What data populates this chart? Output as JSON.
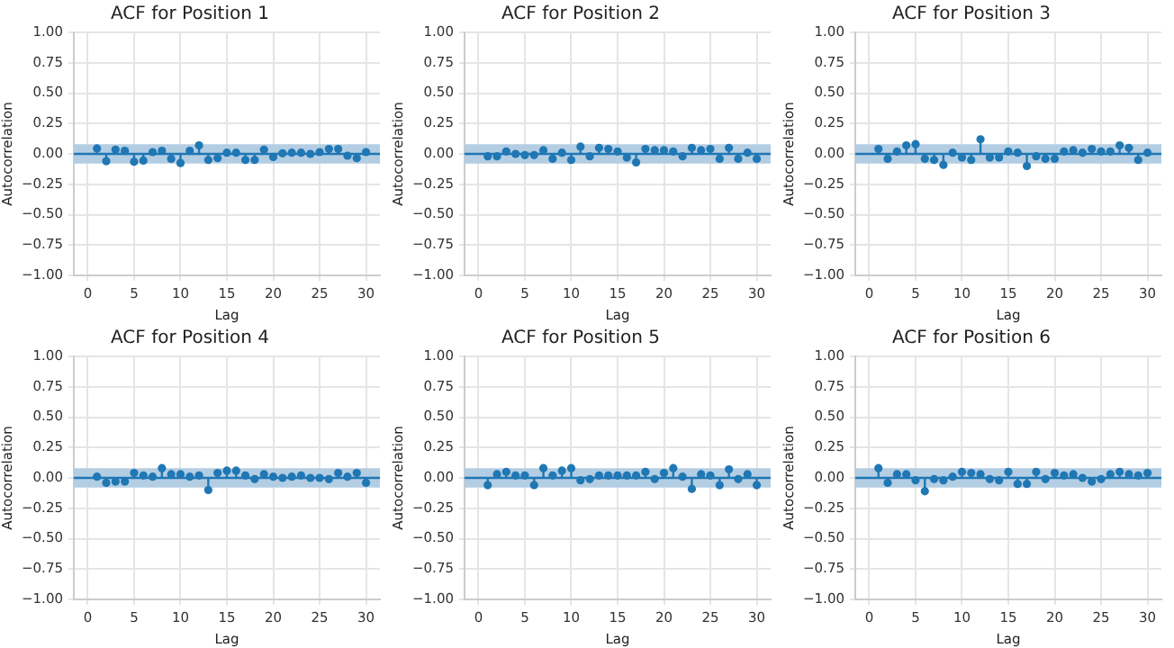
{
  "chart_data": [
    {
      "type": "lollipop",
      "title": "ACF for Position 1",
      "xlabel": "Lag",
      "ylabel": "Autocorrelation",
      "color": "#1f77b4",
      "marker": "circle",
      "grid": true,
      "xlim": [
        -1.5,
        31.5
      ],
      "xticks": [
        0,
        5,
        10,
        15,
        20,
        25,
        30
      ],
      "ylim": [
        -1,
        1
      ],
      "yticks": [
        {
          "value": -1,
          "label": "−1.00"
        },
        {
          "value": -0.75,
          "label": "−0.75"
        },
        {
          "value": -0.5,
          "label": "−0.50"
        },
        {
          "value": -0.25,
          "label": "−0.25"
        },
        {
          "value": 0,
          "label": "0.00"
        },
        {
          "value": 0.25,
          "label": "0.25"
        },
        {
          "value": 0.5,
          "label": "0.50"
        },
        {
          "value": 0.75,
          "label": "0.75"
        },
        {
          "value": 1,
          "label": "1.00"
        }
      ],
      "bands": [
        {
          "axis": "y",
          "from": -0.08,
          "to": 0.08,
          "color": "#b3cde3"
        }
      ],
      "ref_lines": [
        {
          "axis": "y",
          "value": 0,
          "color": "#1f77b4"
        }
      ],
      "x": [
        1,
        2,
        3,
        4,
        5,
        6,
        7,
        8,
        9,
        10,
        11,
        12,
        13,
        14,
        15,
        16,
        17,
        18,
        19,
        20,
        21,
        22,
        23,
        24,
        25,
        26,
        27,
        28,
        29,
        30
      ],
      "values": [
        0.045,
        -0.06,
        0.035,
        0.025,
        -0.065,
        -0.055,
        0.015,
        0.025,
        -0.04,
        -0.075,
        0.025,
        0.07,
        -0.05,
        -0.035,
        0.01,
        0.01,
        -0.05,
        -0.05,
        0.035,
        -0.025,
        0.005,
        0.01,
        0.01,
        0,
        0.015,
        0.04,
        0.04,
        -0.015,
        -0.035,
        0.015
      ]
    },
    {
      "type": "lollipop",
      "title": "ACF for Position 2",
      "xlabel": "Lag",
      "ylabel": "Autocorrelation",
      "color": "#1f77b4",
      "marker": "circle",
      "grid": true,
      "xlim": [
        -1.5,
        31.5
      ],
      "xticks": [
        0,
        5,
        10,
        15,
        20,
        25,
        30
      ],
      "ylim": [
        -1,
        1
      ],
      "yticks": [
        {
          "value": -1,
          "label": "−1.00"
        },
        {
          "value": -0.75,
          "label": "−0.75"
        },
        {
          "value": -0.5,
          "label": "−0.50"
        },
        {
          "value": -0.25,
          "label": "−0.25"
        },
        {
          "value": 0,
          "label": "0.00"
        },
        {
          "value": 0.25,
          "label": "0.25"
        },
        {
          "value": 0.5,
          "label": "0.50"
        },
        {
          "value": 0.75,
          "label": "0.75"
        },
        {
          "value": 1,
          "label": "1.00"
        }
      ],
      "bands": [
        {
          "axis": "y",
          "from": -0.08,
          "to": 0.08,
          "color": "#b3cde3"
        }
      ],
      "ref_lines": [
        {
          "axis": "y",
          "value": 0,
          "color": "#1f77b4"
        }
      ],
      "x": [
        1,
        2,
        3,
        4,
        5,
        6,
        7,
        8,
        9,
        10,
        11,
        12,
        13,
        14,
        15,
        16,
        17,
        18,
        19,
        20,
        21,
        22,
        23,
        24,
        25,
        26,
        27,
        28,
        29,
        30
      ],
      "values": [
        -0.02,
        -0.02,
        0.02,
        0,
        -0.01,
        -0.01,
        0.03,
        -0.04,
        0.01,
        -0.05,
        0.06,
        -0.02,
        0.05,
        0.04,
        0.02,
        -0.03,
        -0.07,
        0.04,
        0.03,
        0.03,
        0.02,
        -0.02,
        0.05,
        0.03,
        0.04,
        -0.04,
        0.05,
        -0.04,
        0.01,
        -0.04
      ]
    },
    {
      "type": "lollipop",
      "title": "ACF for Position 3",
      "xlabel": "Lag",
      "ylabel": "Autocorrelation",
      "color": "#1f77b4",
      "marker": "circle",
      "grid": true,
      "xlim": [
        -1.5,
        31.5
      ],
      "xticks": [
        0,
        5,
        10,
        15,
        20,
        25,
        30
      ],
      "ylim": [
        -1,
        1
      ],
      "yticks": [
        {
          "value": -1,
          "label": "−1.00"
        },
        {
          "value": -0.75,
          "label": "−0.75"
        },
        {
          "value": -0.5,
          "label": "−0.50"
        },
        {
          "value": -0.25,
          "label": "−0.25"
        },
        {
          "value": 0,
          "label": "0.00"
        },
        {
          "value": 0.25,
          "label": "0.25"
        },
        {
          "value": 0.5,
          "label": "0.50"
        },
        {
          "value": 0.75,
          "label": "0.75"
        },
        {
          "value": 1,
          "label": "1.00"
        }
      ],
      "bands": [
        {
          "axis": "y",
          "from": -0.08,
          "to": 0.08,
          "color": "#b3cde3"
        }
      ],
      "ref_lines": [
        {
          "axis": "y",
          "value": 0,
          "color": "#1f77b4"
        }
      ],
      "x": [
        1,
        2,
        3,
        4,
        5,
        6,
        7,
        8,
        9,
        10,
        11,
        12,
        13,
        14,
        15,
        16,
        17,
        18,
        19,
        20,
        21,
        22,
        23,
        24,
        25,
        26,
        27,
        28,
        29,
        30
      ],
      "values": [
        0.04,
        -0.04,
        0.02,
        0.07,
        0.08,
        -0.04,
        -0.05,
        -0.09,
        0.01,
        -0.03,
        -0.05,
        0.12,
        -0.03,
        -0.03,
        0.02,
        0.01,
        -0.1,
        -0.02,
        -0.04,
        -0.04,
        0.02,
        0.03,
        0.01,
        0.04,
        0.02,
        0.02,
        0.07,
        0.05,
        -0.05,
        0.01
      ]
    },
    {
      "type": "lollipop",
      "title": "ACF for Position 4",
      "xlabel": "Lag",
      "ylabel": "Autocorrelation",
      "color": "#1f77b4",
      "marker": "circle",
      "grid": true,
      "xlim": [
        -1.5,
        31.5
      ],
      "xticks": [
        0,
        5,
        10,
        15,
        20,
        25,
        30
      ],
      "ylim": [
        -1,
        1
      ],
      "yticks": [
        {
          "value": -1,
          "label": "−1.00"
        },
        {
          "value": -0.75,
          "label": "−0.75"
        },
        {
          "value": -0.5,
          "label": "−0.50"
        },
        {
          "value": -0.25,
          "label": "−0.25"
        },
        {
          "value": 0,
          "label": "0.00"
        },
        {
          "value": 0.25,
          "label": "0.25"
        },
        {
          "value": 0.5,
          "label": "0.50"
        },
        {
          "value": 0.75,
          "label": "0.75"
        },
        {
          "value": 1,
          "label": "1.00"
        }
      ],
      "bands": [
        {
          "axis": "y",
          "from": -0.08,
          "to": 0.08,
          "color": "#b3cde3"
        }
      ],
      "ref_lines": [
        {
          "axis": "y",
          "value": 0,
          "color": "#1f77b4"
        }
      ],
      "x": [
        1,
        2,
        3,
        4,
        5,
        6,
        7,
        8,
        9,
        10,
        11,
        12,
        13,
        14,
        15,
        16,
        17,
        18,
        19,
        20,
        21,
        22,
        23,
        24,
        25,
        26,
        27,
        28,
        29,
        30
      ],
      "values": [
        0.01,
        -0.04,
        -0.03,
        -0.03,
        0.04,
        0.02,
        0.01,
        0.08,
        0.03,
        0.03,
        0.01,
        0.02,
        -0.1,
        0.04,
        0.06,
        0.06,
        0.02,
        -0.01,
        0.03,
        0.01,
        0,
        0.01,
        0.02,
        0,
        0,
        -0.01,
        0.04,
        0.01,
        0.04,
        -0.04
      ]
    },
    {
      "type": "lollipop",
      "title": "ACF for Position 5",
      "xlabel": "Lag",
      "ylabel": "Autocorrelation",
      "color": "#1f77b4",
      "marker": "circle",
      "grid": true,
      "xlim": [
        -1.5,
        31.5
      ],
      "xticks": [
        0,
        5,
        10,
        15,
        20,
        25,
        30
      ],
      "ylim": [
        -1,
        1
      ],
      "yticks": [
        {
          "value": -1,
          "label": "−1.00"
        },
        {
          "value": -0.75,
          "label": "−0.75"
        },
        {
          "value": -0.5,
          "label": "−0.50"
        },
        {
          "value": -0.25,
          "label": "−0.25"
        },
        {
          "value": 0,
          "label": "0.00"
        },
        {
          "value": 0.25,
          "label": "0.25"
        },
        {
          "value": 0.5,
          "label": "0.50"
        },
        {
          "value": 0.75,
          "label": "0.75"
        },
        {
          "value": 1,
          "label": "1.00"
        }
      ],
      "bands": [
        {
          "axis": "y",
          "from": -0.08,
          "to": 0.08,
          "color": "#b3cde3"
        }
      ],
      "ref_lines": [
        {
          "axis": "y",
          "value": 0,
          "color": "#1f77b4"
        }
      ],
      "x": [
        1,
        2,
        3,
        4,
        5,
        6,
        7,
        8,
        9,
        10,
        11,
        12,
        13,
        14,
        15,
        16,
        17,
        18,
        19,
        20,
        21,
        22,
        23,
        24,
        25,
        26,
        27,
        28,
        29,
        30
      ],
      "values": [
        -0.06,
        0.03,
        0.05,
        0.02,
        0.02,
        -0.06,
        0.08,
        0.02,
        0.06,
        0.08,
        -0.02,
        -0.01,
        0.02,
        0.02,
        0.02,
        0.02,
        0.02,
        0.05,
        -0.01,
        0.04,
        0.08,
        0.01,
        -0.09,
        0.03,
        0.02,
        -0.06,
        0.07,
        -0.01,
        0.03,
        -0.06
      ]
    },
    {
      "type": "lollipop",
      "title": "ACF for Position 6",
      "xlabel": "Lag",
      "ylabel": "Autocorrelation",
      "color": "#1f77b4",
      "marker": "circle",
      "grid": true,
      "xlim": [
        -1.5,
        31.5
      ],
      "xticks": [
        0,
        5,
        10,
        15,
        20,
        25,
        30
      ],
      "ylim": [
        -1,
        1
      ],
      "yticks": [
        {
          "value": -1,
          "label": "−1.00"
        },
        {
          "value": -0.75,
          "label": "−0.75"
        },
        {
          "value": -0.5,
          "label": "−0.50"
        },
        {
          "value": -0.25,
          "label": "−0.25"
        },
        {
          "value": 0,
          "label": "0.00"
        },
        {
          "value": 0.25,
          "label": "0.25"
        },
        {
          "value": 0.5,
          "label": "0.50"
        },
        {
          "value": 0.75,
          "label": "0.75"
        },
        {
          "value": 1,
          "label": "1.00"
        }
      ],
      "bands": [
        {
          "axis": "y",
          "from": -0.08,
          "to": 0.08,
          "color": "#b3cde3"
        }
      ],
      "ref_lines": [
        {
          "axis": "y",
          "value": 0,
          "color": "#1f77b4"
        }
      ],
      "x": [
        1,
        2,
        3,
        4,
        5,
        6,
        7,
        8,
        9,
        10,
        11,
        12,
        13,
        14,
        15,
        16,
        17,
        18,
        19,
        20,
        21,
        22,
        23,
        24,
        25,
        26,
        27,
        28,
        29,
        30
      ],
      "values": [
        0.08,
        -0.04,
        0.03,
        0.03,
        -0.02,
        -0.11,
        -0.01,
        -0.02,
        0.01,
        0.05,
        0.04,
        0.03,
        -0.01,
        -0.02,
        0.05,
        -0.05,
        -0.05,
        0.05,
        -0.01,
        0.04,
        0.02,
        0.03,
        0,
        -0.03,
        -0.01,
        0.03,
        0.05,
        0.03,
        0.02,
        0.04
      ]
    }
  ]
}
